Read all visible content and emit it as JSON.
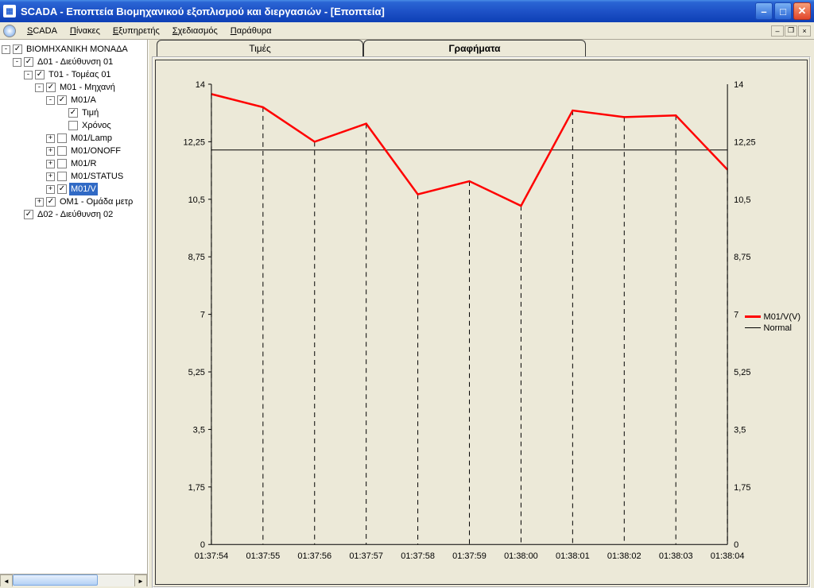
{
  "window": {
    "title": "SCADA - Εποπτεία Βιομηχανικού εξοπλισμού και διεργασιών - [Εποπτεία]"
  },
  "menu": {
    "items": [
      {
        "label": "SCADA",
        "accel": "S"
      },
      {
        "label": "Πίνακες",
        "accel": "Π"
      },
      {
        "label": "Εξυπηρετής",
        "accel": "Ε"
      },
      {
        "label": "Σχεδιασμός",
        "accel": "Σ"
      },
      {
        "label": "Παράθυρα",
        "accel": "Π"
      }
    ]
  },
  "tree": {
    "nodes": [
      {
        "depth": 0,
        "toggle": "-",
        "checked": true,
        "label": "ΒΙΟΜΗΧΑΝΙΚΗ ΜΟΝΑΔΑ"
      },
      {
        "depth": 1,
        "toggle": "-",
        "checked": true,
        "label": "Δ01 - Διεύθυνση 01"
      },
      {
        "depth": 2,
        "toggle": "-",
        "checked": true,
        "label": "T01 - Τομέας 01"
      },
      {
        "depth": 3,
        "toggle": "-",
        "checked": true,
        "label": "M01 - Μηχανή"
      },
      {
        "depth": 4,
        "toggle": "-",
        "checked": true,
        "label": "M01/A"
      },
      {
        "depth": 5,
        "toggle": "",
        "checked": true,
        "label": "Τιμή"
      },
      {
        "depth": 5,
        "toggle": "",
        "checked": false,
        "label": "Χρόνος"
      },
      {
        "depth": 4,
        "toggle": "+",
        "checked": false,
        "label": "M01/Lamp"
      },
      {
        "depth": 4,
        "toggle": "+",
        "checked": false,
        "label": "M01/ONOFF"
      },
      {
        "depth": 4,
        "toggle": "+",
        "checked": false,
        "label": "M01/R"
      },
      {
        "depth": 4,
        "toggle": "+",
        "checked": false,
        "label": "M01/STATUS"
      },
      {
        "depth": 4,
        "toggle": "+",
        "checked": true,
        "label": "M01/V",
        "selected": true
      },
      {
        "depth": 3,
        "toggle": "+",
        "checked": true,
        "label": "OM1 - Ομάδα μετρ"
      },
      {
        "depth": 1,
        "toggle": "",
        "checked": true,
        "label": "Δ02 - Διεύθυνση 02"
      }
    ]
  },
  "tabs": {
    "inactive": "Τιμές",
    "active": "Γραφήματα"
  },
  "chart": {
    "type": "line",
    "background_color": "#ece9d8",
    "axis_color": "#000000",
    "series_color": "#ff0000",
    "series_width": 2.5,
    "normal_color": "#000000",
    "normal_value": 12.0,
    "y_min": 0,
    "y_max": 14,
    "y_ticks": [
      0,
      1.75,
      3.5,
      5.25,
      7,
      8.75,
      10.5,
      12.25,
      14
    ],
    "y_tick_labels": [
      "0",
      "1,75",
      "3,5",
      "5,25",
      "7",
      "8,75",
      "10,5",
      "12,25",
      "14"
    ],
    "x_labels": [
      "01:37:54",
      "01:37:55",
      "01:37:56",
      "01:37:57",
      "01:37:58",
      "01:37:59",
      "01:38:00",
      "01:38:01",
      "01:38:02",
      "01:38:03",
      "01:38:04"
    ],
    "values": [
      13.7,
      13.3,
      12.25,
      12.8,
      10.65,
      11.05,
      10.3,
      13.2,
      13.0,
      13.05,
      11.4
    ],
    "legend": {
      "series": "M01/V(V)",
      "normal": "Normal"
    }
  }
}
